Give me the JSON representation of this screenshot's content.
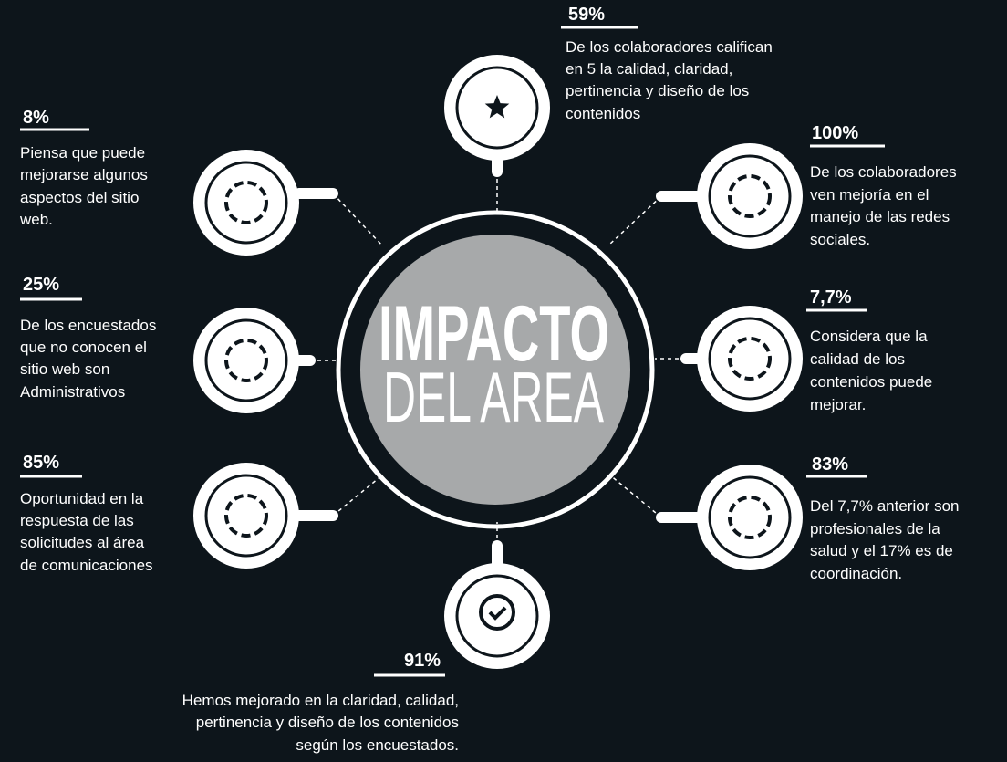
{
  "center": {
    "line1": "IMPACTO",
    "line2": "DEL AREA"
  },
  "items": [
    {
      "stat": "59%",
      "lines": [
        "De los colaboradores califican",
        "en 5 la calidad, claridad,",
        "pertinencia y diseño de los",
        "contenidos"
      ]
    },
    {
      "stat": "100%",
      "lines": [
        "De los colaboradores",
        "ven mejoría en el",
        "manejo de las redes",
        "sociales."
      ]
    },
    {
      "stat": "7,7%",
      "lines": [
        "Considera que la",
        "calidad de los",
        "contenidos puede",
        "mejorar."
      ]
    },
    {
      "stat": "83%",
      "lines": [
        "Del 7,7% anterior son",
        "profesionales de la",
        "salud y el 17% es de",
        "coordinación."
      ]
    },
    {
      "stat": "91%",
      "lines": [
        "Hemos mejorado en la claridad, calidad,",
        "pertinencia y diseño  de los contenidos",
        "según los encuestados."
      ]
    },
    {
      "stat": "85%",
      "lines": [
        "Oportunidad en la",
        "respuesta de las",
        "solicitudes al área",
        "de comunicaciones"
      ]
    },
    {
      "stat": "25%",
      "lines": [
        "De los encuestados",
        "que no conocen el",
        "sitio web son",
        "Administrativos"
      ]
    },
    {
      "stat": "8%",
      "lines": [
        "Piensa que puede",
        "mejorarse algunos",
        "aspectos del sitio",
        "web."
      ]
    }
  ]
}
